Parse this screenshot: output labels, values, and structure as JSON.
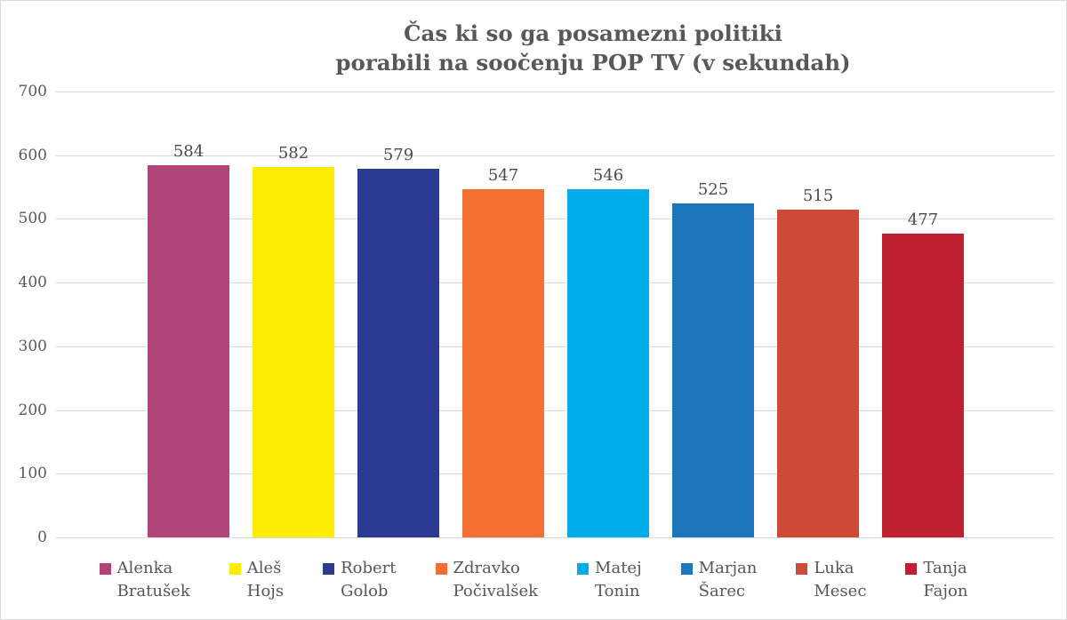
{
  "chart_data": {
    "type": "bar",
    "title": "Čas ki so ga posamezni politiki porabili na soočenju POP TV (v sekundah)",
    "title_lines": [
      "Čas ki so ga posamezni politiki",
      "porabili na soočenju POP TV (v sekundah)"
    ],
    "categories": [
      "Alenka Bratušek",
      "Aleš Hojs",
      "Robert Golob",
      "Zdravko Počivalšek",
      "Matej Tonin",
      "Marjan Šarec",
      "Luka Mesec",
      "Tanja Fajon"
    ],
    "values": [
      584,
      582,
      579,
      547,
      546,
      525,
      515,
      477
    ],
    "bar_colors": [
      "#B0447B",
      "#FDED00",
      "#2B3A92",
      "#F37032",
      "#00ACEA",
      "#1B76BC",
      "#CE4A37",
      "#BF2030"
    ],
    "legend_labels": [
      [
        "Alenka",
        "Bratušek"
      ],
      [
        "Aleš",
        "Hojs"
      ],
      [
        "Robert",
        "Golob"
      ],
      [
        "Zdravko",
        "Počivalšek"
      ],
      [
        "Matej",
        "Tonin"
      ],
      [
        "Marjan",
        "Šarec"
      ],
      [
        "Luka",
        "Mesec"
      ],
      [
        "Tanja",
        "Fajon"
      ]
    ],
    "xlabel": "",
    "ylabel": "",
    "ylim": [
      0,
      700
    ],
    "yticks": [
      0,
      100,
      200,
      300,
      400,
      500,
      600,
      700
    ],
    "grid": true,
    "legend_position": "bottom",
    "colors": {
      "title_text": "#57585a",
      "axis_text": "#595959",
      "value_text": "#4a4a4a",
      "gridline": "#d9d9d9",
      "background": "#ffffff"
    }
  }
}
